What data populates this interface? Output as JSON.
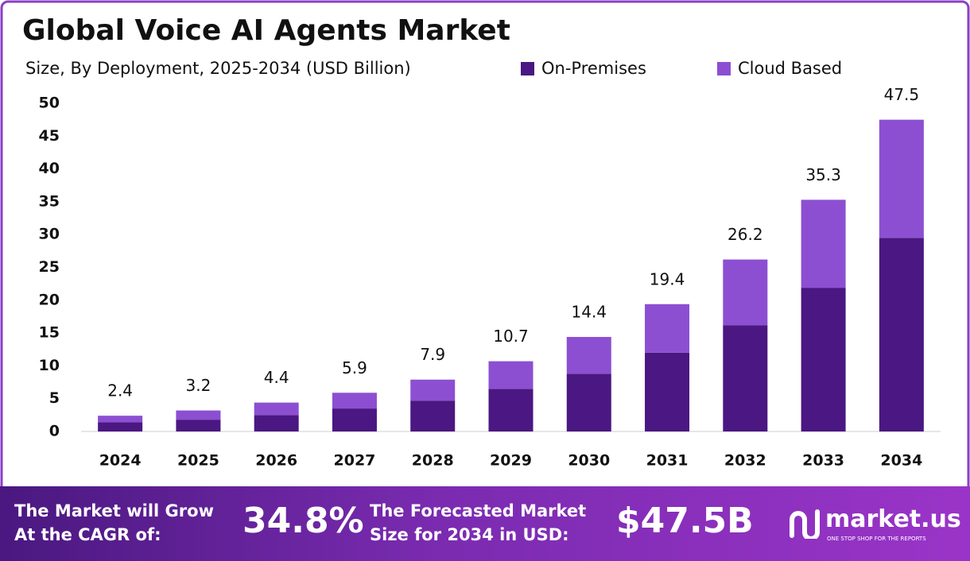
{
  "chart_data": {
    "type": "stacked_bar",
    "title": "Global Voice AI Agents Market",
    "subtitle": "Size, By Deployment, 2025-2034 (USD Billion)",
    "categories": [
      "2024",
      "2025",
      "2026",
      "2027",
      "2028",
      "2029",
      "2030",
      "2031",
      "2032",
      "2033",
      "2034"
    ],
    "series": [
      {
        "name": "On-Premises",
        "color": "#4b1782",
        "values": [
          1.4,
          1.8,
          2.5,
          3.5,
          4.7,
          6.5,
          8.8,
          12.0,
          16.2,
          21.9,
          29.5
        ]
      },
      {
        "name": "Cloud Based",
        "color": "#8c4fd1",
        "values": [
          1.0,
          1.4,
          1.9,
          2.4,
          3.2,
          4.2,
          5.6,
          7.4,
          10.0,
          13.4,
          18.0
        ]
      }
    ],
    "totals": [
      2.4,
      3.2,
      4.4,
      5.9,
      7.9,
      10.7,
      14.4,
      19.4,
      26.2,
      35.3,
      47.5
    ],
    "ylim": [
      0,
      50
    ],
    "yticks": [
      0,
      5,
      10,
      15,
      20,
      25,
      30,
      35,
      40,
      45,
      50
    ],
    "grid": false
  },
  "footer": {
    "cagr_label": [
      "The Market will Grow",
      "At the CAGR of:"
    ],
    "cagr": "34.8%",
    "forecast_label": [
      "The Forecasted Market",
      "Size for 2034 in USD:"
    ],
    "forecast": "$47.5B",
    "brand": "market.us",
    "tagline": "ONE STOP SHOP FOR THE REPORTS"
  }
}
